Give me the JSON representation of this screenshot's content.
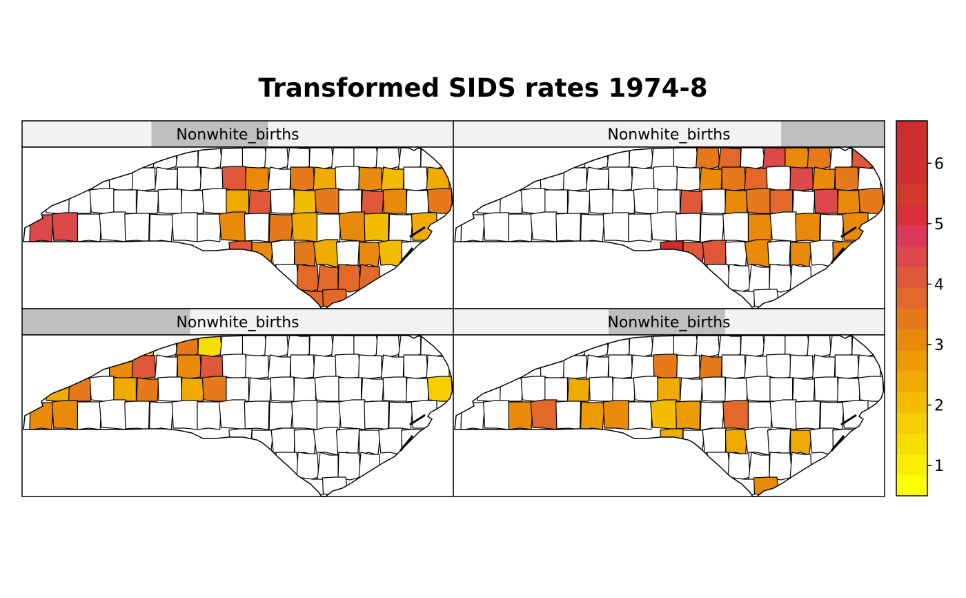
{
  "title": "Transformed SIDS rates 1974-8",
  "panels": [
    {
      "strip_label": "Nonwhite_births",
      "strip_shade": [
        0.3,
        0.57
      ]
    },
    {
      "strip_label": "Nonwhite_births",
      "strip_shade": [
        0.76,
        1.0
      ]
    },
    {
      "strip_label": "Nonwhite_births",
      "strip_shade": [
        0.0,
        0.39
      ]
    },
    {
      "strip_label": "Nonwhite_births",
      "strip_shade": [
        0.36,
        0.63
      ]
    }
  ],
  "colorkey": {
    "min": 0.5,
    "max": 6.7,
    "ticks": [
      "1",
      "2",
      "3",
      "4",
      "5",
      "6"
    ],
    "colors": [
      "#FFFF00",
      "#FCEE00",
      "#F8DD00",
      "#F5CD00",
      "#F2BC00",
      "#EFAB00",
      "#EC9B00",
      "#E98A0A",
      "#E6791A",
      "#E3692A",
      "#E0583A",
      "#DD484A",
      "#DA375A",
      "#D8303A",
      "#D43A2C",
      "#D03030",
      "#CC3030",
      "#CD2F2F"
    ]
  },
  "chart_data": {
    "type": "choropleth",
    "title": "Transformed SIDS rates 1974-8",
    "panel_labels": [
      "Nonwhite_births",
      "Nonwhite_births",
      "Nonwhite_births",
      "Nonwhite_births"
    ],
    "colorkey_range": [
      0.5,
      6.7
    ],
    "colorkey_ticks": [
      1,
      2,
      3,
      4,
      5,
      6
    ]
  }
}
